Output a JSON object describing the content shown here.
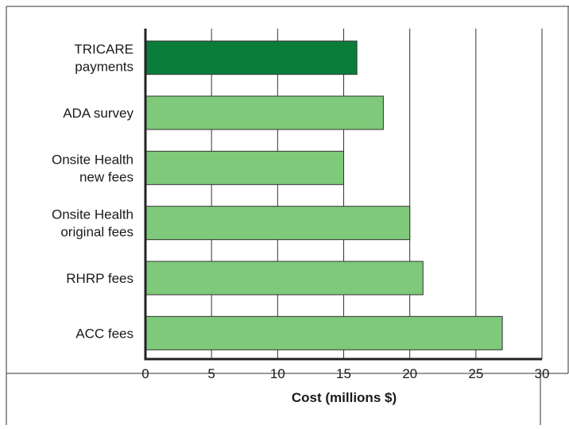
{
  "chart_data": {
    "type": "bar",
    "orientation": "horizontal",
    "categories": [
      [
        "TRICARE",
        "payments"
      ],
      [
        "ADA survey"
      ],
      [
        "Onsite Health",
        "new fees"
      ],
      [
        "Onsite Health",
        "original fees"
      ],
      [
        "RHRP fees"
      ],
      [
        "ACC fees"
      ]
    ],
    "values": [
      16,
      18,
      15,
      20,
      21,
      27
    ],
    "bar_colors": [
      "#0b7d3b",
      "#7fc97a",
      "#7fc97a",
      "#7fc97a",
      "#7fc97a",
      "#7fc97a"
    ],
    "xlabel": "Cost (millions $)",
    "ylabel": "",
    "xlim": [
      0,
      30
    ],
    "xticks": [
      0,
      5,
      10,
      15,
      20,
      25,
      30
    ],
    "grid": "vertical",
    "title": ""
  }
}
